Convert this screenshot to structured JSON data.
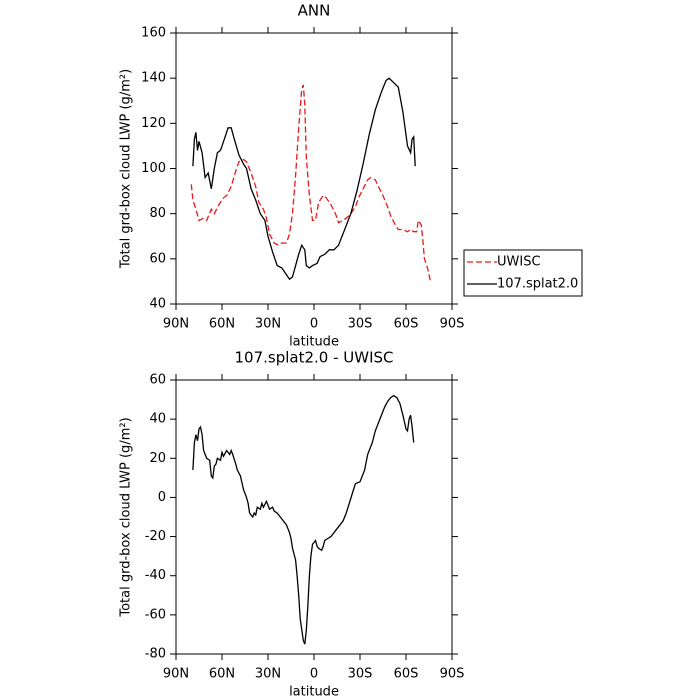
{
  "chart_data": [
    {
      "type": "line",
      "title": "ANN",
      "xlabel": "latitude",
      "ylabel": "Total grd-box cloud LWP (g/m²)",
      "xlim": [
        90,
        -90
      ],
      "ylim": [
        40,
        160
      ],
      "xticks": [
        {
          "value": 90,
          "label": "90N"
        },
        {
          "value": 60,
          "label": "60N"
        },
        {
          "value": 30,
          "label": "30N"
        },
        0,
        {
          "value": -30,
          "label": "30S"
        },
        {
          "value": -60,
          "label": "60S"
        },
        {
          "value": -90,
          "label": "90S"
        }
      ],
      "yticks": [
        40,
        60,
        80,
        100,
        120,
        140,
        160
      ],
      "legend": "right",
      "series": [
        {
          "name": "UWISC",
          "color": "#e8191c",
          "line_style": "dashed",
          "x": [
            80,
            79,
            77,
            75,
            72,
            70,
            67,
            65,
            62,
            59,
            57,
            54,
            51,
            49,
            46,
            44,
            41,
            38,
            36,
            33,
            31,
            29,
            26,
            23,
            21,
            18,
            16,
            14,
            12,
            10,
            8,
            7,
            6,
            5,
            3,
            1,
            -1,
            -3,
            -6,
            -8,
            -11,
            -14,
            -16,
            -19,
            -21,
            -24,
            -27,
            -29,
            -32,
            -35,
            -37,
            -40,
            -42,
            -45,
            -48,
            -50,
            -53,
            -55,
            -58,
            -61,
            -63,
            -65,
            -67,
            -68,
            -70,
            -71,
            -72,
            -74,
            -76
          ],
          "values": [
            93,
            86,
            82,
            77,
            78,
            77,
            82,
            80,
            84,
            87,
            88,
            92,
            99,
            103,
            104,
            103,
            98,
            92,
            85,
            82,
            78,
            71,
            67,
            66,
            67,
            67,
            71,
            80,
            97,
            118,
            135,
            137,
            128,
            105,
            88,
            77,
            77,
            85,
            88,
            87,
            84,
            80,
            76,
            77,
            78,
            80,
            83,
            87,
            91,
            95,
            96,
            95,
            92,
            88,
            83,
            79,
            75,
            73,
            73,
            72,
            73,
            72,
            72,
            77,
            75,
            68,
            60,
            56,
            50
          ]
        },
        {
          "name": "107.splat2.0",
          "color": "#000000",
          "line_style": "solid",
          "x": [
            79,
            78,
            77,
            76,
            75,
            73,
            71,
            69,
            67,
            65,
            63,
            61,
            58,
            56,
            54,
            52,
            49,
            46,
            44,
            41,
            38,
            35,
            32,
            30,
            27,
            24,
            21,
            18,
            16,
            14,
            12,
            10,
            8,
            6,
            5,
            3,
            1,
            -2,
            -4,
            -7,
            -10,
            -13,
            -16,
            -20,
            -24,
            -28,
            -32,
            -36,
            -40,
            -44,
            -47,
            -49,
            -52,
            -55,
            -58,
            -61,
            -63,
            -64,
            -65,
            -66
          ],
          "values": [
            101,
            113,
            116,
            108,
            112,
            107,
            96,
            98,
            91,
            100,
            107,
            108,
            114,
            118,
            118,
            113,
            106,
            102,
            100,
            91,
            86,
            80,
            77,
            70,
            63,
            57,
            56,
            53,
            51,
            52,
            57,
            62,
            66,
            64,
            57,
            56,
            57,
            58,
            61,
            62,
            64,
            64,
            66,
            73,
            80,
            90,
            102,
            115,
            126,
            134,
            139,
            140,
            138,
            136,
            125,
            110,
            107,
            113,
            114,
            101
          ]
        }
      ]
    },
    {
      "type": "line",
      "title": "107.splat2.0 - UWISC",
      "xlabel": "latitude",
      "ylabel": "Total grd-box cloud LWP (g/m²)",
      "xlim": [
        90,
        -90
      ],
      "ylim": [
        -80,
        60
      ],
      "xticks": [
        {
          "value": 90,
          "label": "90N"
        },
        {
          "value": 60,
          "label": "60N"
        },
        {
          "value": 30,
          "label": "30N"
        },
        0,
        {
          "value": -30,
          "label": "30S"
        },
        {
          "value": -60,
          "label": "60S"
        },
        {
          "value": -90,
          "label": "90S"
        }
      ],
      "yticks": [
        -80,
        -60,
        -40,
        -20,
        0,
        20,
        40,
        60
      ],
      "series": [
        {
          "color": "#000000",
          "line_style": "solid",
          "x": [
            79,
            78,
            77,
            76,
            75,
            74,
            73,
            72,
            70,
            68,
            67,
            66,
            65,
            64,
            63,
            61,
            60,
            59,
            57,
            55,
            54,
            53,
            51,
            50,
            48,
            46,
            44,
            43,
            42,
            40,
            39,
            38,
            37,
            35,
            34,
            33,
            31,
            30,
            29,
            27,
            26,
            24,
            22,
            20,
            18,
            16,
            15,
            14,
            12,
            11,
            10,
            9,
            7,
            6,
            5,
            4,
            3,
            2,
            1,
            -1,
            -2,
            -3,
            -5,
            -6,
            -7,
            -9,
            -11,
            -14,
            -16,
            -19,
            -21,
            -23,
            -25,
            -27,
            -30,
            -33,
            -35,
            -38,
            -40,
            -43,
            -46,
            -48,
            -50,
            -52,
            -54,
            -56,
            -58,
            -60,
            -61,
            -62,
            -63,
            -64,
            -65
          ],
          "values": [
            14,
            28,
            32,
            29,
            35,
            36,
            32,
            24,
            20,
            19,
            11,
            10,
            16,
            17,
            20,
            19,
            23,
            21,
            24,
            22,
            24,
            22,
            17,
            14,
            11,
            4,
            0,
            -3,
            -8,
            -10,
            -8,
            -9,
            -5,
            -6,
            -3,
            -5,
            -2,
            -4,
            -6,
            -5,
            -7,
            -8,
            -10,
            -12,
            -14,
            -18,
            -21,
            -26,
            -32,
            -40,
            -50,
            -62,
            -73,
            -75,
            -68,
            -55,
            -40,
            -30,
            -24,
            -22,
            -25,
            -26,
            -27,
            -25,
            -22,
            -21,
            -20,
            -17,
            -15,
            -12,
            -8,
            -3,
            2,
            7,
            8,
            14,
            22,
            28,
            34,
            40,
            46,
            49,
            51,
            52,
            51,
            48,
            42,
            35,
            34,
            40,
            42,
            36,
            28
          ]
        }
      ]
    }
  ]
}
